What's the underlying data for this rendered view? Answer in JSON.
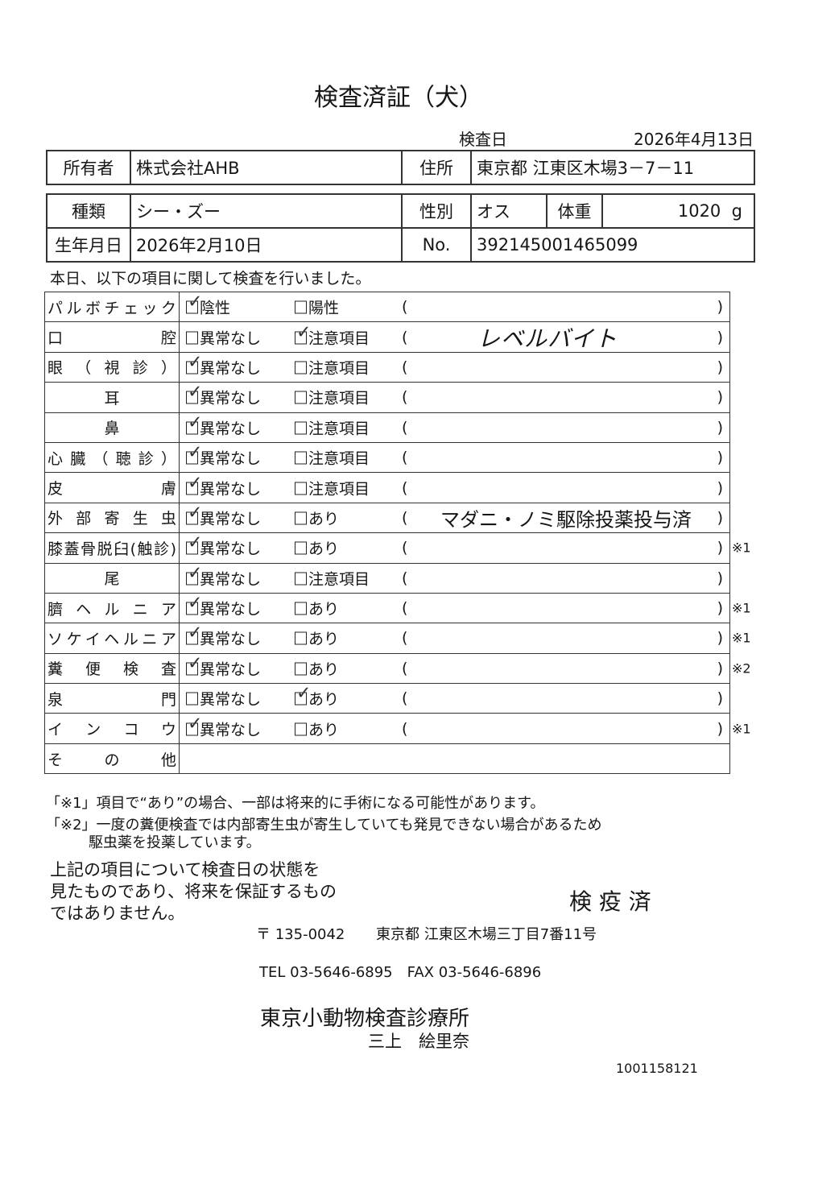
{
  "title": "検査済証（犬）",
  "exam_date_label": "検査日",
  "exam_date": "2026年4月13日",
  "owner": {
    "label": "所有者",
    "value": "株式会社AHB",
    "address_label": "住所",
    "address": "東京都 江東区木場3－7－11"
  },
  "animal": {
    "breed_label": "種類",
    "breed": "シー・ズー",
    "sex_label": "性別",
    "sex": "オス",
    "weight_label": "体重",
    "weight": "1020",
    "weight_unit": "g",
    "birth_label": "生年月日",
    "birth": "2026年2月10日",
    "no_label": "No.",
    "no": "392145001465099"
  },
  "intro": "本日、以下の項目に関して検査を行いました。",
  "checklist": [
    {
      "label": "パルボチェック",
      "opt1": "陰性",
      "opt2": "陽性",
      "checked": 1,
      "note": "",
      "mark": ""
    },
    {
      "label": "口腔",
      "opt1": "異常なし",
      "opt2": "注意項目",
      "checked": 2,
      "note": "レベルバイト",
      "handwritten": true,
      "mark": ""
    },
    {
      "label": "眼（視診）",
      "opt1": "異常なし",
      "opt2": "注意項目",
      "checked": 1,
      "note": "",
      "mark": ""
    },
    {
      "label": "耳",
      "opt1": "異常なし",
      "opt2": "注意項目",
      "checked": 1,
      "note": "",
      "mark": "",
      "center": true
    },
    {
      "label": "鼻",
      "opt1": "異常なし",
      "opt2": "注意項目",
      "checked": 1,
      "note": "",
      "mark": "",
      "center": true
    },
    {
      "label": "心臓（聴診）",
      "opt1": "異常なし",
      "opt2": "注意項目",
      "checked": 1,
      "note": "",
      "mark": ""
    },
    {
      "label": "皮膚",
      "opt1": "異常なし",
      "opt2": "注意項目",
      "checked": 1,
      "note": "",
      "mark": ""
    },
    {
      "label": "外部寄生虫",
      "opt1": "異常なし",
      "opt2": "あり",
      "checked": 1,
      "note": "マダニ・ノミ駆除投薬投与済",
      "mark": ""
    },
    {
      "label": "膝蓋骨脱臼(触診)",
      "opt1": "異常なし",
      "opt2": "あり",
      "checked": 1,
      "note": "",
      "mark": "※1"
    },
    {
      "label": "尾",
      "opt1": "異常なし",
      "opt2": "注意項目",
      "checked": 1,
      "note": "",
      "mark": "",
      "center": true
    },
    {
      "label": "臍ヘルニア",
      "opt1": "異常なし",
      "opt2": "あり",
      "checked": 1,
      "note": "",
      "mark": "※1"
    },
    {
      "label": "ソケイヘルニア",
      "opt1": "異常なし",
      "opt2": "あり",
      "checked": 1,
      "note": "",
      "mark": "※1"
    },
    {
      "label": "糞便検査",
      "opt1": "異常なし",
      "opt2": "あり",
      "checked": 1,
      "note": "",
      "mark": "※2"
    },
    {
      "label": "泉門",
      "opt1": "異常なし",
      "opt2": "あり",
      "checked": 2,
      "note": "",
      "mark": ""
    },
    {
      "label": "インコウ",
      "opt1": "異常なし",
      "opt2": "あり",
      "checked": 1,
      "note": "",
      "mark": "※1"
    }
  ],
  "other_label": "その他",
  "footnotes": [
    "「※1」項目で“あり”の場合、一部は将来的に手術になる可能性があります。",
    "「※2」一度の糞便検査では内部寄生虫が寄生していても発見できない場合があるため",
    "駆虫薬を投薬しています。"
  ],
  "disclaimer": [
    "上記の項目について検査日の状態を",
    "見たものであり、将来を保証するもの",
    "ではありません。"
  ],
  "quarantine": "検 疫 済",
  "postal": "〒 135-0042",
  "clinic_address": "東京都 江東区木場三丁目7番11号",
  "contact": "TEL 03-5646-6895　FAX 03-5646-6896",
  "clinic_name": "東京小動物検査診療所",
  "person": "三上　絵里奈",
  "doc_code": "1001158121"
}
